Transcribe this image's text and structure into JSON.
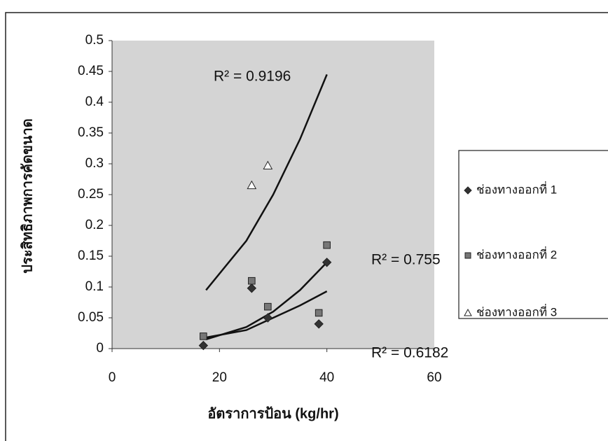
{
  "chart_data": {
    "type": "scatter",
    "x_label": "อัตราการป้อน (kg/hr)",
    "y_label": "ประสิทธิภาพการคัดขนาด",
    "xlim": [
      0,
      60
    ],
    "xticks": [
      0,
      20,
      40,
      60
    ],
    "ylim": [
      0,
      0.5
    ],
    "yticks": [
      0,
      0.05,
      0.1,
      0.15,
      0.2,
      0.25,
      0.3,
      0.35,
      0.4,
      0.45,
      0.5
    ],
    "series": [
      {
        "name": "ช่องทางออกที่ 1",
        "color": "#333333",
        "marker": "diamond",
        "x": [
          17,
          26,
          29,
          38.5,
          40
        ],
        "values": [
          0.005,
          0.098,
          0.05,
          0.04,
          0.14
        ]
      },
      {
        "name": "ช่องทางออกที่ 2",
        "color": "#777777",
        "marker": "square",
        "x": [
          17,
          26,
          29,
          38.5,
          40
        ],
        "values": [
          0.02,
          0.11,
          0.068,
          0.058,
          0.168
        ]
      },
      {
        "name": "ช่องทางออกที่ 3",
        "color": "#ffffff",
        "marker": "triangle",
        "x": [
          26,
          29
        ],
        "values": [
          0.265,
          0.297
        ]
      }
    ],
    "trendlines": [
      {
        "label": "R² = 0.9196",
        "x": [
          17.5,
          25,
          30,
          35,
          40
        ],
        "values": [
          0.095,
          0.175,
          0.25,
          0.34,
          0.445
        ]
      },
      {
        "label": "R² = 0.755",
        "x": [
          17.5,
          25,
          30,
          35,
          40
        ],
        "values": [
          0.015,
          0.035,
          0.06,
          0.095,
          0.14
        ]
      },
      {
        "label": "R² = 0.6182",
        "x": [
          17.5,
          25,
          30,
          35,
          40
        ],
        "values": [
          0.018,
          0.03,
          0.05,
          0.07,
          0.093
        ]
      }
    ]
  }
}
